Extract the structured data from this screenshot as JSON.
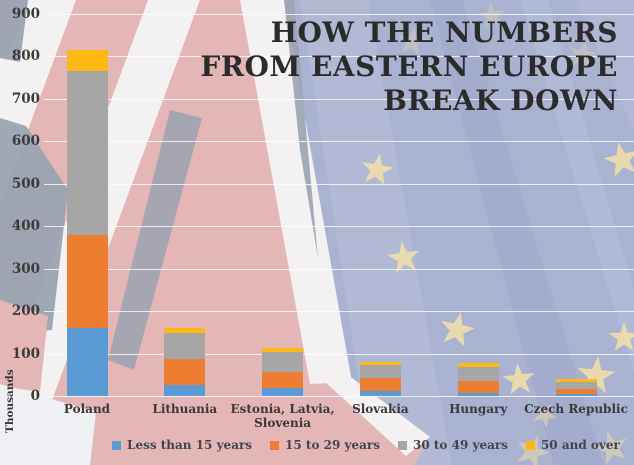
{
  "title": {
    "full": "HOW THE NUMBERS FROM EASTERN EUROPE BREAK DOWN",
    "lines": [
      "HOW THE NUMBERS",
      "FROM EASTERN EUROPE",
      "BREAK DOWN"
    ]
  },
  "chart_data": {
    "type": "bar",
    "stacked": true,
    "title": "HOW THE NUMBERS FROM EASTERN EUROPE BREAK DOWN",
    "ylabel": "Thousands",
    "ylim": [
      0,
      900
    ],
    "y_ticks": [
      0,
      100,
      200,
      300,
      400,
      500,
      600,
      700,
      800,
      900
    ],
    "grid": true,
    "legend_position": "bottom",
    "categories": [
      "Poland",
      "Lithuania",
      "Estonia, Latvia,\nSlovenia",
      "Slovakia",
      "Hungary",
      "Czech Republic"
    ],
    "series": [
      {
        "name": "Less than 15 years",
        "color": "#5b9bd5",
        "values": [
          160,
          26,
          19,
          12,
          7,
          4
        ]
      },
      {
        "name": "15 to 29 years",
        "color": "#ed7d31",
        "values": [
          220,
          61,
          37,
          30,
          28,
          13
        ]
      },
      {
        "name": "30 to 49 years",
        "color": "#a6a6a6",
        "values": [
          385,
          61,
          48,
          31,
          33,
          16
        ]
      },
      {
        "name": "50 and over",
        "color": "#fdb913",
        "values": [
          50,
          12,
          9,
          6,
          10,
          7
        ]
      }
    ],
    "totals": [
      815,
      160,
      113,
      79,
      78,
      40
    ],
    "units": "thousands"
  },
  "background_colors": {
    "uk_flag_pink": "#e4b6b6",
    "uk_flag_gray": "#9aa3b1",
    "uk_flag_white": "#f3f1f2",
    "eu_flag_blue": "#a9b2d1",
    "eu_star_yellow": "#f1e0a8",
    "gridline": "#ffffff"
  }
}
